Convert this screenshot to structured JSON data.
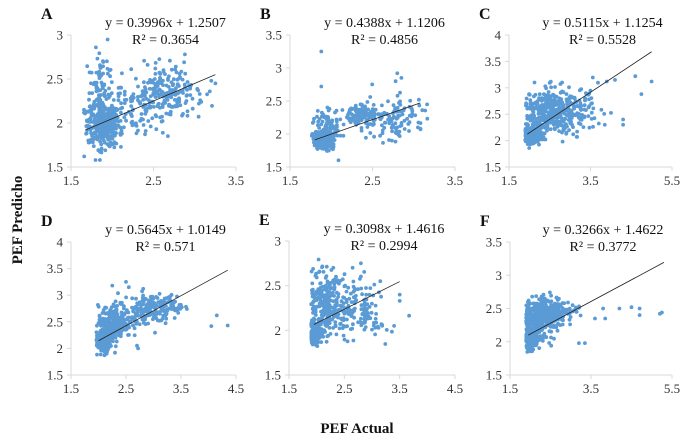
{
  "chart_data": {
    "type": "scatter",
    "xlabel": "PEF Actual",
    "ylabel": "PEF Predicho",
    "marker_color": "#5B9BD5",
    "trendline_color": "#222222",
    "grid": false,
    "panels": [
      {
        "label": "A",
        "equation": "y = 0.3996x + 1.2507",
        "r2_text": "R² = 0.3654",
        "slope": 0.3996,
        "intercept": 1.2507,
        "r2": 0.3654,
        "trend_x": [
          1.68,
          3.25
        ],
        "xlim": [
          1.5,
          3.5
        ],
        "xticks": [
          "1.5",
          "2.5",
          "3.5"
        ],
        "xtick_values": [
          1.5,
          2.5,
          3.5
        ],
        "ylim": [
          1.5,
          3.0
        ],
        "yticks": [
          "1.5",
          "2",
          "2.5",
          "3"
        ],
        "ytick_values": [
          1.5,
          2.0,
          2.5,
          3.0
        ],
        "clusters": [
          {
            "cx": 1.9,
            "cy": 1.98,
            "sx": 0.1,
            "sy": 0.12,
            "n": 320
          },
          {
            "cx": 1.85,
            "cy": 2.35,
            "sx": 0.08,
            "sy": 0.2,
            "n": 90
          },
          {
            "cx": 2.65,
            "cy": 2.35,
            "sx": 0.2,
            "sy": 0.14,
            "n": 200
          },
          {
            "cx": 2.3,
            "cy": 2.15,
            "sx": 0.2,
            "sy": 0.15,
            "n": 90
          }
        ],
        "outliers": [
          [
            1.66,
            1.62
          ],
          [
            1.85,
            1.58
          ],
          [
            3.2,
            2.48
          ],
          [
            3.25,
            2.45
          ],
          [
            3.05,
            2.22
          ],
          [
            3.08,
            2.24
          ]
        ]
      },
      {
        "label": "B",
        "equation": "y = 0.4388x + 1.1206",
        "r2_text": "R² = 0.4856",
        "slope": 0.4388,
        "intercept": 1.1206,
        "r2": 0.4856,
        "trend_x": [
          1.8,
          3.08
        ],
        "xlim": [
          1.5,
          3.5
        ],
        "xticks": [
          "1.5",
          "2.5",
          "3.5"
        ],
        "xtick_values": [
          1.5,
          2.5,
          3.5
        ],
        "ylim": [
          1.5,
          3.5
        ],
        "yticks": [
          "1.5",
          "2",
          "2.5",
          "3",
          "3.5"
        ],
        "ytick_values": [
          1.5,
          2.0,
          2.5,
          3.0,
          3.5
        ],
        "clusters": [
          {
            "cx": 1.9,
            "cy": 1.9,
            "sx": 0.06,
            "sy": 0.06,
            "n": 300
          },
          {
            "cx": 1.95,
            "cy": 2.1,
            "sx": 0.08,
            "sy": 0.15,
            "n": 90
          },
          {
            "cx": 2.35,
            "cy": 2.3,
            "sx": 0.1,
            "sy": 0.08,
            "n": 90
          },
          {
            "cx": 2.75,
            "cy": 2.25,
            "sx": 0.2,
            "sy": 0.15,
            "n": 120
          }
        ],
        "outliers": [
          [
            1.88,
            3.25
          ],
          [
            1.88,
            2.72
          ],
          [
            2.8,
            2.92
          ],
          [
            2.78,
            2.8
          ],
          [
            2.85,
            2.85
          ],
          [
            3.05,
            2.1
          ],
          [
            3.08,
            2.08
          ]
        ]
      },
      {
        "label": "C",
        "equation": "y = 0.5115x + 1.1254",
        "r2_text": "R² = 0.5528",
        "slope": 0.5115,
        "intercept": 1.1254,
        "r2": 0.5528,
        "trend_x": [
          1.95,
          5.0
        ],
        "xlim": [
          1.5,
          5.5
        ],
        "xticks": [
          "1.5",
          "3.5",
          "5.5"
        ],
        "xtick_values": [
          1.5,
          3.5,
          5.5
        ],
        "ylim": [
          1.5,
          4.0
        ],
        "yticks": [
          "1.5",
          "2",
          "2.5",
          "3",
          "3.5",
          "4"
        ],
        "ytick_values": [
          1.5,
          2.0,
          2.5,
          3.0,
          3.5,
          4.0
        ],
        "clusters": [
          {
            "cx": 2.05,
            "cy": 2.1,
            "sx": 0.1,
            "sy": 0.08,
            "n": 250
          },
          {
            "cx": 2.5,
            "cy": 2.55,
            "sx": 0.3,
            "sy": 0.22,
            "n": 350
          },
          {
            "cx": 3.2,
            "cy": 2.6,
            "sx": 0.35,
            "sy": 0.2,
            "n": 90
          }
        ],
        "outliers": [
          [
            4.6,
            3.22
          ],
          [
            5.0,
            3.12
          ],
          [
            4.75,
            2.88
          ],
          [
            4.3,
            2.3
          ],
          [
            4.3,
            2.4
          ],
          [
            3.85,
            2.3
          ],
          [
            4.1,
            3.15
          ],
          [
            3.9,
            3.12
          ]
        ]
      },
      {
        "label": "D",
        "equation": "y = 0.5645x + 1.0149",
        "r2_text": "R² = 0.571",
        "slope": 0.5645,
        "intercept": 1.0149,
        "r2": 0.571,
        "trend_x": [
          2.0,
          4.35
        ],
        "xlim": [
          1.5,
          4.5
        ],
        "xticks": [
          "1.5",
          "2.5",
          "3.5",
          "4.5"
        ],
        "xtick_values": [
          1.5,
          2.5,
          3.5,
          4.5
        ],
        "ylim": [
          1.5,
          4.0
        ],
        "yticks": [
          "1.5",
          "2",
          "2.5",
          "3",
          "3.5",
          "4"
        ],
        "ytick_values": [
          1.5,
          2.0,
          2.5,
          3.0,
          3.5,
          4.0
        ],
        "clusters": [
          {
            "cx": 2.1,
            "cy": 2.15,
            "sx": 0.08,
            "sy": 0.1,
            "n": 280
          },
          {
            "cx": 2.3,
            "cy": 2.5,
            "sx": 0.15,
            "sy": 0.15,
            "n": 200
          },
          {
            "cx": 2.9,
            "cy": 2.75,
            "sx": 0.2,
            "sy": 0.15,
            "n": 150
          },
          {
            "cx": 3.35,
            "cy": 2.8,
            "sx": 0.1,
            "sy": 0.1,
            "n": 40
          }
        ],
        "outliers": [
          [
            4.15,
            2.62
          ],
          [
            4.05,
            2.42
          ],
          [
            4.35,
            2.43
          ],
          [
            2.3,
            1.92
          ],
          [
            2.7,
            2.05
          ],
          [
            2.72,
            2.0
          ],
          [
            2.5,
            3.25
          ],
          [
            2.25,
            3.18
          ],
          [
            2.55,
            3.15
          ]
        ]
      },
      {
        "label": "E",
        "equation": "y = 0.3098x + 1.4616",
        "r2_text": "R² = 0.2994",
        "slope": 0.3098,
        "intercept": 1.4616,
        "r2": 0.2994,
        "trend_x": [
          1.95,
          3.5
        ],
        "xlim": [
          1.5,
          4.5
        ],
        "xticks": [
          "1.5",
          "2.5",
          "3.5",
          "4.5"
        ],
        "xtick_values": [
          1.5,
          2.5,
          3.5,
          4.5
        ],
        "ylim": [
          1.5,
          3.0
        ],
        "yticks": [
          "1.5",
          "2",
          "2.5",
          "3"
        ],
        "ytick_values": [
          1.5,
          2.0,
          2.5,
          3.0
        ],
        "clusters": [
          {
            "cx": 1.98,
            "cy": 1.98,
            "sx": 0.05,
            "sy": 0.05,
            "n": 250
          },
          {
            "cx": 2.15,
            "cy": 2.25,
            "sx": 0.15,
            "sy": 0.18,
            "n": 250
          },
          {
            "cx": 2.6,
            "cy": 2.3,
            "sx": 0.25,
            "sy": 0.15,
            "n": 120
          },
          {
            "cx": 3.0,
            "cy": 2.1,
            "sx": 0.15,
            "sy": 0.08,
            "n": 40
          }
        ],
        "outliers": [
          [
            3.5,
            2.4
          ],
          [
            3.5,
            2.33
          ],
          [
            3.4,
            2.05
          ],
          [
            3.15,
            2.55
          ],
          [
            2.8,
            2.75
          ],
          [
            2.3,
            2.7
          ],
          [
            2.65,
            2.7
          ]
        ]
      },
      {
        "label": "F",
        "equation": "y = 0.3266x + 1.4622",
        "r2_text": "R² = 0.3772",
        "slope": 0.3266,
        "intercept": 1.4622,
        "r2": 0.3772,
        "trend_x": [
          1.95,
          5.3
        ],
        "xlim": [
          1.5,
          5.5
        ],
        "xticks": [
          "1.5",
          "3.5",
          "5.5"
        ],
        "xtick_values": [
          1.5,
          3.5,
          5.5
        ],
        "ylim": [
          1.5,
          3.5
        ],
        "yticks": [
          "1.5",
          "2",
          "2.5",
          "3",
          "3.5"
        ],
        "ytick_values": [
          1.5,
          2.0,
          2.5,
          3.0,
          3.5
        ],
        "clusters": [
          {
            "cx": 2.0,
            "cy": 2.05,
            "sx": 0.08,
            "sy": 0.08,
            "n": 200
          },
          {
            "cx": 2.4,
            "cy": 2.45,
            "sx": 0.3,
            "sy": 0.1,
            "n": 350
          },
          {
            "cx": 2.2,
            "cy": 2.2,
            "sx": 0.2,
            "sy": 0.12,
            "n": 100
          }
        ],
        "outliers": [
          [
            3.2,
            1.98
          ],
          [
            3.35,
            1.98
          ],
          [
            3.6,
            2.35
          ],
          [
            3.8,
            2.5
          ],
          [
            4.2,
            2.5
          ],
          [
            4.5,
            2.52
          ],
          [
            4.7,
            2.5
          ],
          [
            4.7,
            2.4
          ],
          [
            5.2,
            2.42
          ],
          [
            5.25,
            2.44
          ],
          [
            3.85,
            2.35
          ]
        ]
      }
    ]
  }
}
